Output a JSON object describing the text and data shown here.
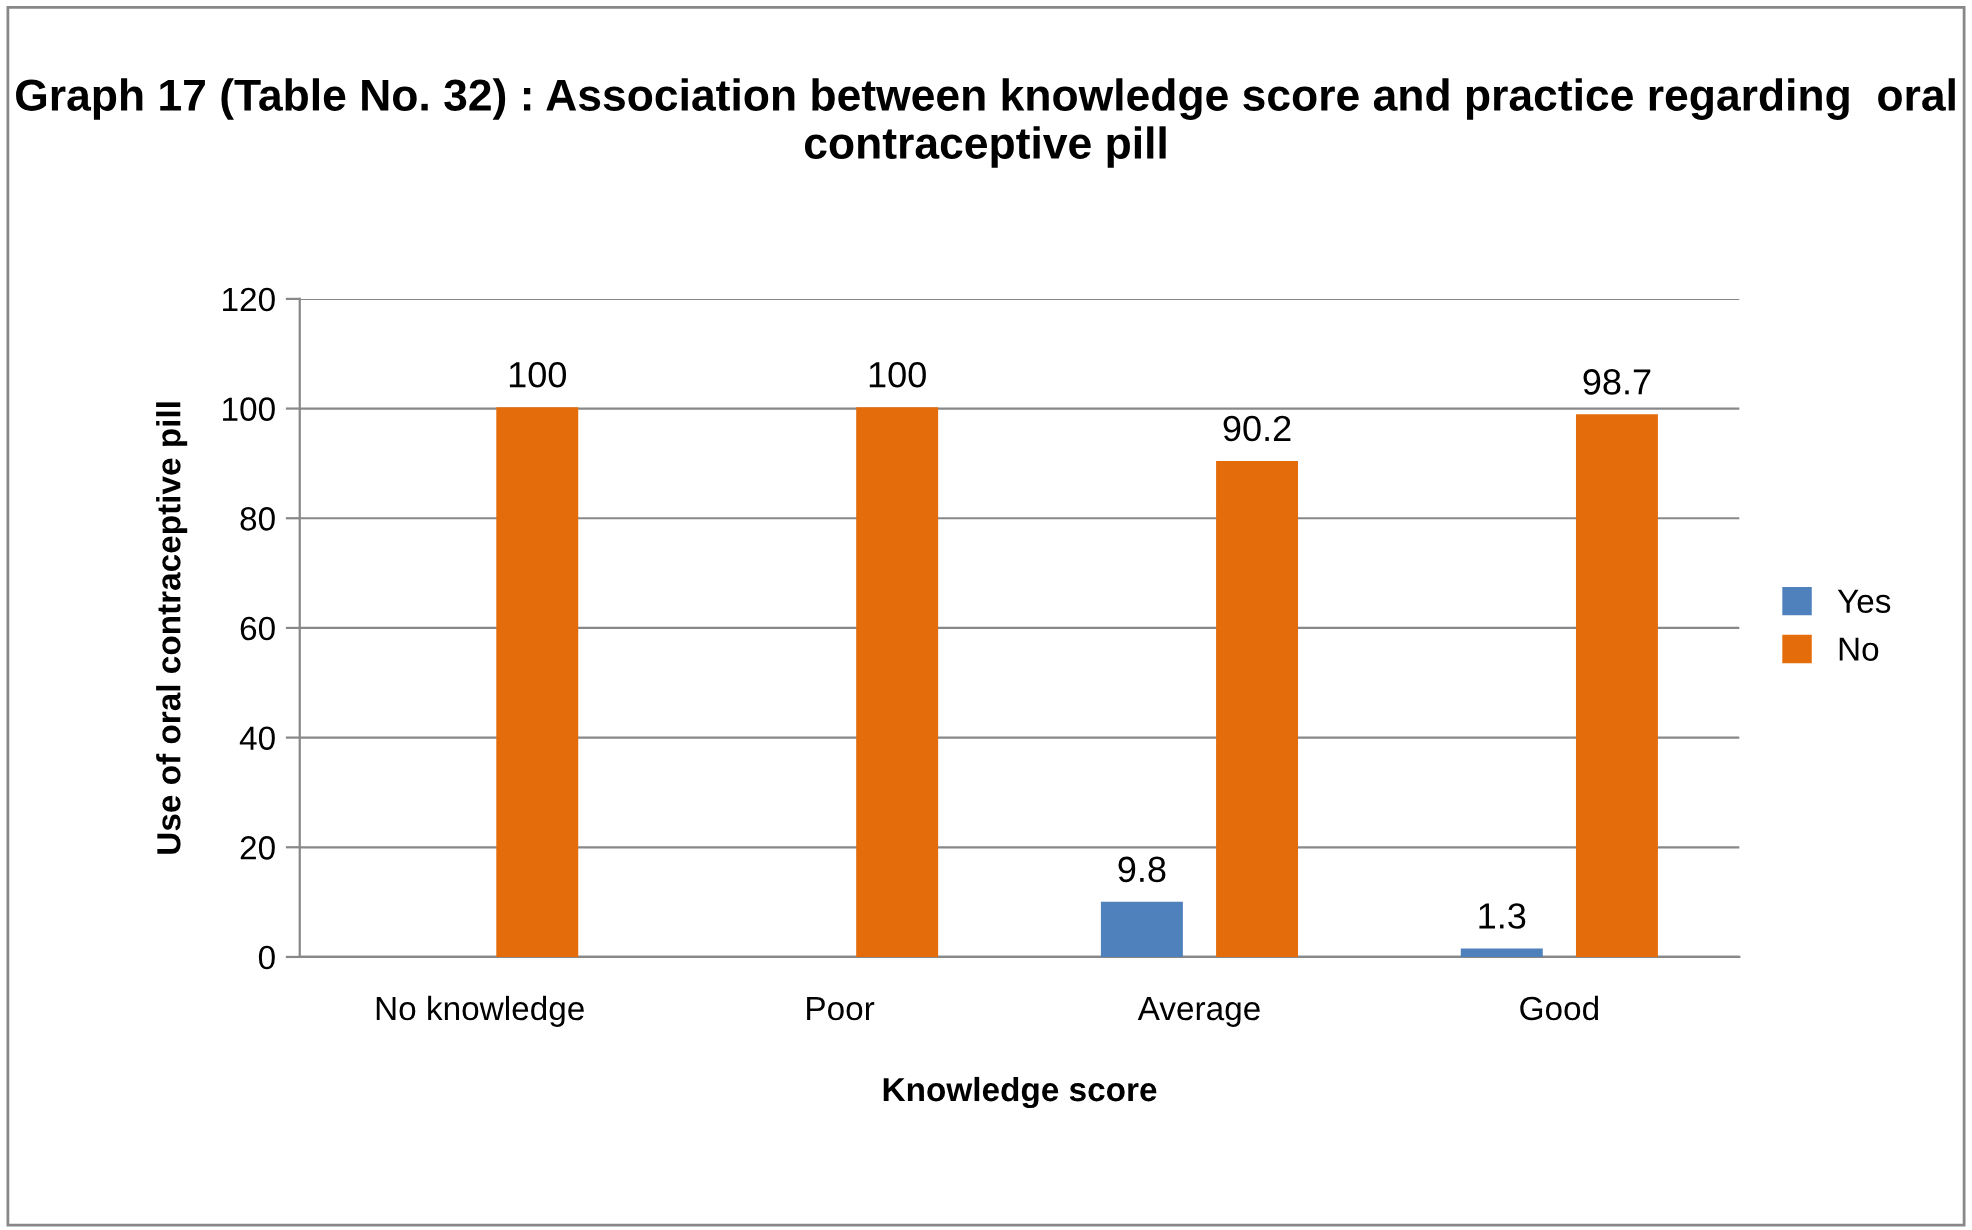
{
  "chart_data": {
    "type": "bar",
    "title": "Graph 17 (Table No. 32) : Association between knowledge score and practice regarding  oral contraceptive pill",
    "xlabel": "Knowledge score",
    "ylabel": "Use of oral contraceptive pill",
    "categories": [
      "No knowledge",
      "Poor",
      "Average",
      "Good"
    ],
    "series": [
      {
        "name": "Yes",
        "color": "#4f81bd",
        "values": [
          null,
          null,
          9.8,
          1.3
        ],
        "value_labels": [
          null,
          null,
          "9.8",
          "1.3"
        ]
      },
      {
        "name": "No",
        "color": "#e46c0a",
        "values": [
          100,
          100,
          90.2,
          98.7
        ],
        "value_labels": [
          "100",
          "100",
          "90.2",
          "98.7"
        ]
      }
    ],
    "ylim": [
      0,
      120
    ],
    "yticks": [
      0,
      20,
      40,
      60,
      80,
      100,
      120
    ],
    "grid": "y",
    "legend": "right"
  }
}
